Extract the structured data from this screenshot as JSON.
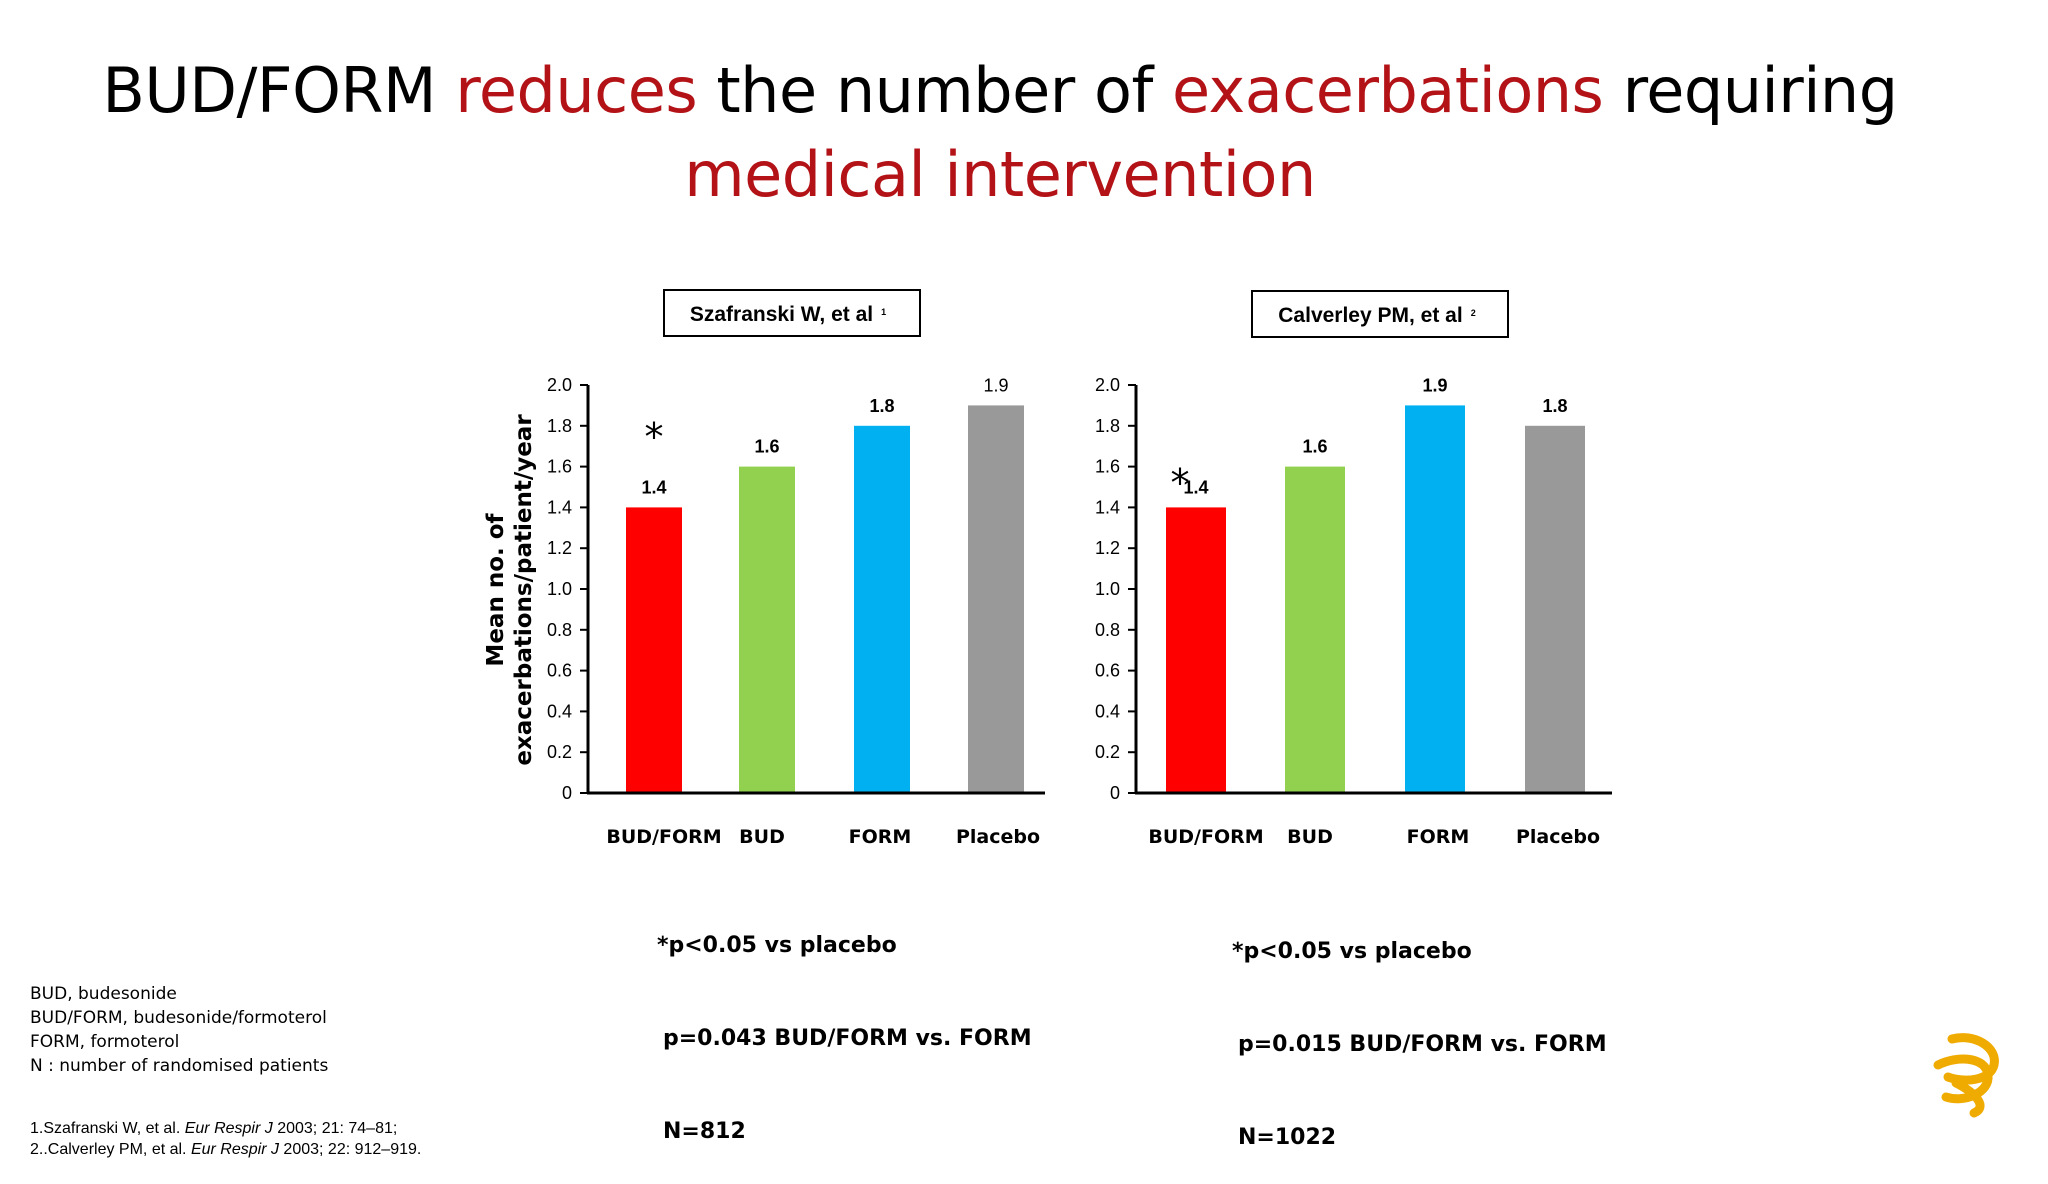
{
  "title": {
    "line1": [
      {
        "text": "BUD/FORM ",
        "red": false
      },
      {
        "text": "reduces",
        "red": true
      },
      {
        "text": " the number of ",
        "red": false
      },
      {
        "text": "exacerbations",
        "red": true
      },
      {
        "text": " requiring",
        "red": false
      }
    ],
    "line2": "medical intervention"
  },
  "colors": {
    "title_red": "#b31217",
    "BUD/FORM": "#ff0000",
    "BUD": "#92d050",
    "FORM": "#00b0f0",
    "Placebo": "#999999"
  },
  "chart_data": [
    {
      "type": "bar",
      "title": "Szafranski W, et al",
      "title_superscript": "1",
      "ylabel": "Mean no. of exacerbations/patient/year",
      "categories": [
        "BUD/FORM",
        "BUD",
        "FORM",
        "Placebo"
      ],
      "values": [
        1.4,
        1.6,
        1.8,
        1.9
      ],
      "value_labels": [
        "1.4",
        "1.6",
        "1.8",
        "1.9"
      ],
      "value_label_bold": [
        true,
        true,
        true,
        false
      ],
      "ylim": [
        0,
        2.0
      ],
      "yticks": [
        "0",
        "0.2",
        "0.4",
        "0.6",
        "0.8",
        "1.0",
        "1.2",
        "1.4",
        "1.6",
        "1.8",
        "2.0"
      ],
      "grid": false,
      "annotation": "*",
      "notes": [
        "*p<0.05 vs placebo",
        "p=0.043 BUD/FORM vs. FORM",
        "N=812"
      ]
    },
    {
      "type": "bar",
      "title": "Calverley PM, et al",
      "title_superscript": "2",
      "ylabel": "",
      "categories": [
        "BUD/FORM",
        "BUD",
        "FORM",
        "Placebo"
      ],
      "values": [
        1.4,
        1.6,
        1.9,
        1.8
      ],
      "value_labels": [
        "1.4",
        "1.6",
        "1.9",
        "1.8"
      ],
      "value_label_bold": [
        true,
        true,
        true,
        true
      ],
      "ylim": [
        0,
        2.0
      ],
      "yticks": [
        "0",
        "0.2",
        "0.4",
        "0.6",
        "0.8",
        "1.0",
        "1.2",
        "1.4",
        "1.6",
        "1.8",
        "2.0"
      ],
      "grid": false,
      "annotation": "*",
      "notes": [
        "*p<0.05 vs placebo",
        "p=0.015 BUD/FORM vs. FORM",
        "N=1022"
      ]
    }
  ],
  "abbreviations": [
    "BUD, budesonide",
    "BUD/FORM, budesonide/formoterol",
    "FORM, formoterol",
    "N : number of randomised patients"
  ],
  "references": [
    {
      "pre": "1.Szafranski W, et al. ",
      "journal": "Eur Respir J",
      "post": " 2003; 21: 74–81;"
    },
    {
      "pre": "2..Calverley PM, et al. ",
      "journal": "Eur Respir J",
      "post": " 2003; 22: 912–919."
    }
  ],
  "logo": {
    "icon": "astrazeneca-logo-icon",
    "color": "#f0ab00"
  }
}
